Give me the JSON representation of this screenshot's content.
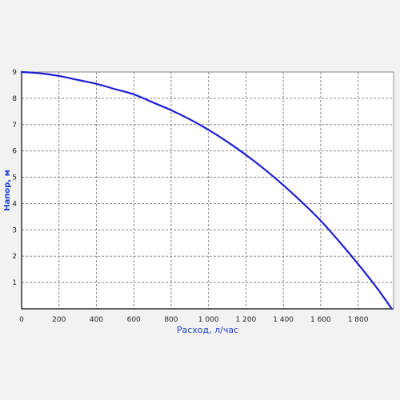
{
  "chart_data": {
    "type": "line",
    "title": "",
    "xlabel": "Расход, л/час",
    "ylabel": "Напор, м",
    "xlim": [
      0,
      1990
    ],
    "ylim": [
      0,
      9
    ],
    "grid": true,
    "x_ticks": [
      0,
      200,
      400,
      600,
      800,
      1000,
      1200,
      1400,
      1600,
      1800
    ],
    "x_tick_labels": [
      "0",
      "200",
      "400",
      "600",
      "800",
      "1 000",
      "1 200",
      "1 400",
      "1 600",
      "1 800"
    ],
    "y_ticks": [
      1,
      2,
      3,
      4,
      5,
      6,
      7,
      8,
      9
    ],
    "y_tick_labels": [
      "1",
      "2",
      "3",
      "4",
      "5",
      "6",
      "7",
      "8",
      "9"
    ],
    "series": [
      {
        "color": "#1e1ed2",
        "x": [
          0,
          100,
          200,
          300,
          400,
          500,
          600,
          700,
          800,
          900,
          1000,
          1100,
          1200,
          1300,
          1400,
          1500,
          1600,
          1700,
          1800,
          1900,
          1980
        ],
        "y": [
          9.0,
          8.95,
          8.85,
          8.7,
          8.55,
          8.35,
          8.15,
          7.85,
          7.55,
          7.2,
          6.8,
          6.35,
          5.85,
          5.3,
          4.7,
          4.05,
          3.35,
          2.55,
          1.7,
          0.8,
          0.0
        ]
      }
    ]
  },
  "colors": {
    "background": "#f2f2f2",
    "plot_background": "#ffffff",
    "grid": "#8a8a8a",
    "axis": "#000000",
    "axis_title": "#1a3fd6"
  }
}
